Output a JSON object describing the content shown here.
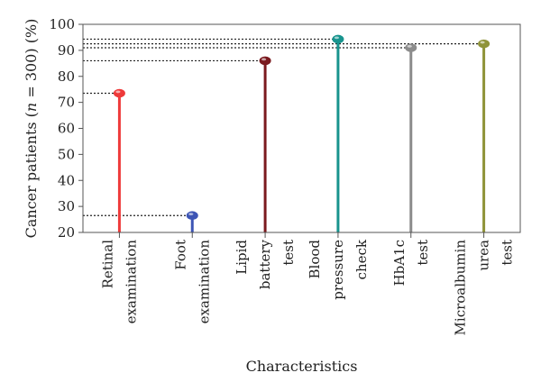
{
  "chart_data": {
    "type": "lollipop",
    "xlabel": "Characteristics",
    "ylabel_parts": [
      "Cancer patients (",
      "n",
      " = 300) (%)"
    ],
    "ylim": [
      20,
      100
    ],
    "yticks": [
      20,
      30,
      40,
      50,
      60,
      70,
      80,
      90,
      100
    ],
    "grid": false,
    "categories": [
      {
        "lines": [
          "Retinal",
          "examination"
        ],
        "value": 73.5,
        "color": "#ee3a3a"
      },
      {
        "lines": [
          "Foot",
          "examination"
        ],
        "value": 26.5,
        "color": "#3d55b5"
      },
      {
        "lines": [
          "Lipid",
          "battery",
          "test"
        ],
        "value": 86.0,
        "color": "#7b1a1f"
      },
      {
        "lines": [
          "Blood",
          "pressure",
          "check"
        ],
        "value": 94.3,
        "color": "#18948e"
      },
      {
        "lines": [
          "HbA1c",
          "test"
        ],
        "value": 91.0,
        "color": "#8c8c8c"
      },
      {
        "lines": [
          "Microalbumin",
          "urea",
          "test"
        ],
        "value": 92.5,
        "color": "#8f9338"
      }
    ]
  }
}
